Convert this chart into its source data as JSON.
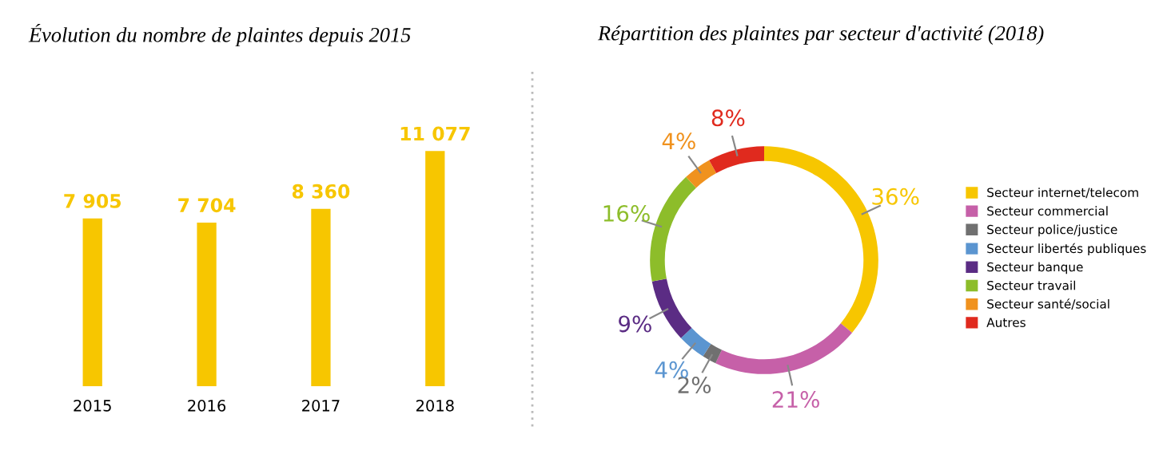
{
  "chart_data": [
    {
      "type": "bar",
      "title": "Évolution du nombre de plaintes depuis 2015",
      "categories": [
        "2015",
        "2016",
        "2017",
        "2018"
      ],
      "values": [
        7905,
        7704,
        8360,
        11077
      ],
      "color": "#f7c600",
      "value_labels": [
        "7 905",
        "7 704",
        "8 360",
        "11 077"
      ],
      "grid": false,
      "legend": false
    },
    {
      "type": "donut",
      "title": "Répartition des plaintes par secteur d'activité (2018)",
      "categories": [
        "Secteur internet/telecom",
        "Secteur commercial",
        "Secteur police/justice",
        "Secteur libertés publiques",
        "Secteur banque",
        "Secteur travail",
        "Secteur santé/social",
        "Autres"
      ],
      "values": [
        36,
        21,
        2,
        4,
        9,
        16,
        4,
        8
      ],
      "colors": [
        "#f7c600",
        "#c660a8",
        "#707070",
        "#5b95d0",
        "#5b2c84",
        "#8dbd2a",
        "#f0921e",
        "#e02a1e"
      ],
      "value_labels": [
        "36%",
        "21%",
        "2%",
        "4%",
        "9%",
        "16%",
        "4%",
        "8%"
      ],
      "legend": "right"
    }
  ]
}
